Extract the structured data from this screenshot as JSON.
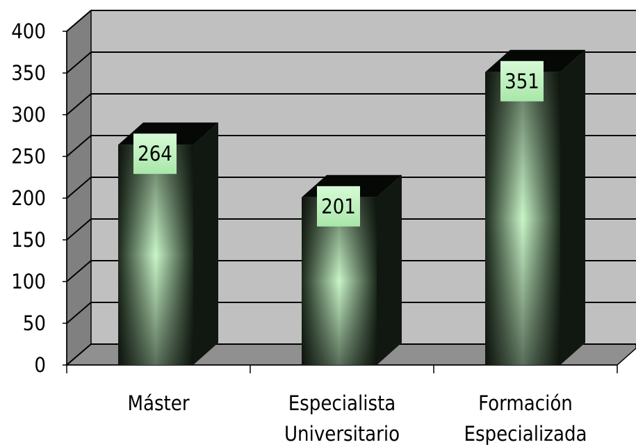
{
  "chart_data": {
    "type": "bar",
    "categories": [
      [
        "Máster"
      ],
      [
        "Especialista",
        "Universitario"
      ],
      [
        "Formación",
        "Especializada"
      ]
    ],
    "values": [
      264,
      201,
      351
    ],
    "data_labels": [
      "264",
      "201",
      "351"
    ],
    "ylim": [
      0,
      400
    ],
    "yticks": [
      "0",
      "50",
      "100",
      "150",
      "200",
      "250",
      "300",
      "350",
      "400"
    ],
    "grid": true,
    "style": "3d-column",
    "colors": {
      "wall": "#c0c0c0",
      "side_wall": "#808080",
      "floor": "#909090",
      "bar_center": "#c8f5c8",
      "bar_edge": "#1a2a1a",
      "bar_side": "#111811",
      "bar_top": "#050805",
      "label_bg": "#ccf7cc"
    }
  }
}
